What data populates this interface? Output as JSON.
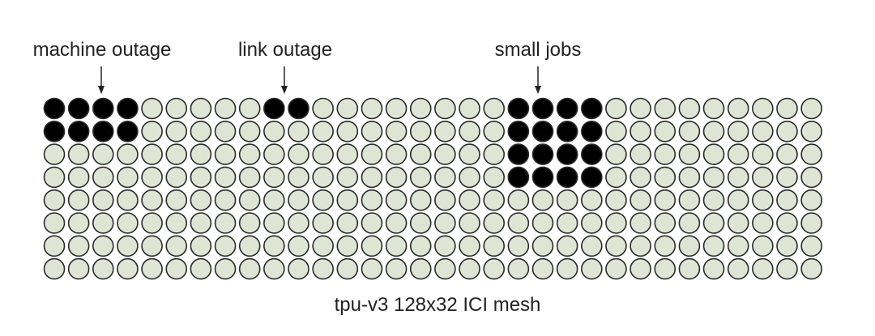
{
  "diagram": {
    "caption": "tpu-v3 128x32 ICI mesh",
    "labels": {
      "machine_outage": "machine outage",
      "link_outage": "link outage",
      "small_jobs": "small jobs"
    },
    "grid": {
      "columns": 32,
      "rows": 8
    },
    "colors": {
      "node_fill": "#dfe5d4",
      "node_highlight": "#000000",
      "node_stroke": "#2a2a2a",
      "text": "#222222"
    },
    "highlighted_regions": [
      {
        "name": "machine-outage",
        "col_start": 0,
        "col_end": 3,
        "row_start": 0,
        "row_end": 1
      },
      {
        "name": "link-outage",
        "col_start": 9,
        "col_end": 10,
        "row_start": 0,
        "row_end": 0
      },
      {
        "name": "small-jobs",
        "col_start": 19,
        "col_end": 22,
        "row_start": 0,
        "row_end": 3
      }
    ]
  }
}
